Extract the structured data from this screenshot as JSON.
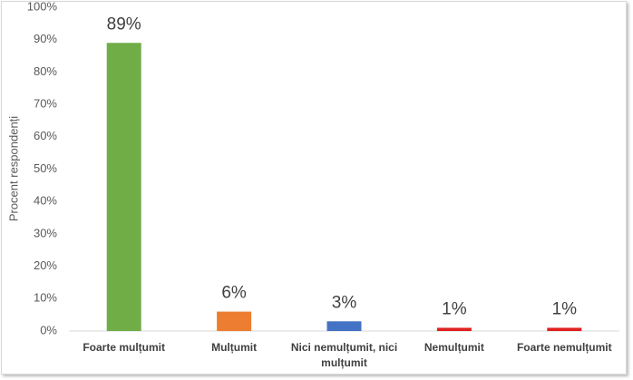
{
  "chart_data": {
    "type": "bar",
    "y_label": "Procent respondenți",
    "categories": [
      "Foarte mulțumit",
      "Mulțumit",
      "Nici nemulțumit, nici mulțumit",
      "Nemulțumit",
      "Foarte nemulțumit"
    ],
    "values": [
      89,
      6,
      3,
      1,
      1
    ],
    "value_labels": [
      "89%",
      "6%",
      "3%",
      "1%",
      "1%"
    ],
    "colors": [
      "#70ad47",
      "#ed7d31",
      "#4472c4",
      "#e02020",
      "#e02020"
    ],
    "ylim": [
      0,
      100
    ],
    "yticks": [
      {
        "value": 0,
        "label": "0%"
      },
      {
        "value": 10,
        "label": "10%"
      },
      {
        "value": 20,
        "label": "20%"
      },
      {
        "value": 30,
        "label": "30%"
      },
      {
        "value": 40,
        "label": "40%"
      },
      {
        "value": 50,
        "label": "50%"
      },
      {
        "value": 60,
        "label": "60%"
      },
      {
        "value": 70,
        "label": "70%"
      },
      {
        "value": 80,
        "label": "80%"
      },
      {
        "value": 90,
        "label": "90%"
      },
      {
        "value": 100,
        "label": "100%"
      }
    ],
    "grid": false
  }
}
